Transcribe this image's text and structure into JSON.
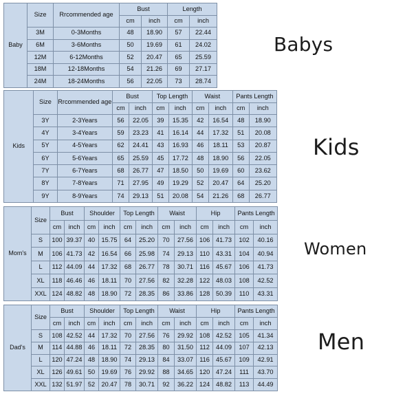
{
  "sections": [
    {
      "id": "baby",
      "group_label": "Baby",
      "side_label": "Babys",
      "header": {
        "size": "Size",
        "age": "Rrcommended age",
        "measures": [
          "Bust",
          "Length"
        ],
        "units": [
          "cm",
          "inch"
        ]
      },
      "rows": [
        {
          "size": "3M",
          "age": "0-3Months",
          "values": [
            "48",
            "18.90",
            "57",
            "22.44"
          ]
        },
        {
          "size": "6M",
          "age": "3-6Months",
          "values": [
            "50",
            "19.69",
            "61",
            "24.02"
          ]
        },
        {
          "size": "12M",
          "age": "6-12Months",
          "values": [
            "52",
            "20.47",
            "65",
            "25.59"
          ]
        },
        {
          "size": "18M",
          "age": "12-18Months",
          "values": [
            "54",
            "21.26",
            "69",
            "27.17"
          ]
        },
        {
          "size": "24M",
          "age": "18-24Months",
          "values": [
            "56",
            "22.05",
            "73",
            "28.74"
          ]
        }
      ]
    },
    {
      "id": "kids",
      "group_label": "Kids",
      "side_label": "Kids",
      "header": {
        "size": "Size",
        "age": "Rrcommended age",
        "measures": [
          "Bust",
          "Top Length",
          "Waist",
          "Pants Length"
        ],
        "units": [
          "cm",
          "inch"
        ]
      },
      "rows": [
        {
          "size": "3Y",
          "age": "2-3Years",
          "values": [
            "56",
            "22.05",
            "39",
            "15.35",
            "42",
            "16.54",
            "48",
            "18.90"
          ]
        },
        {
          "size": "4Y",
          "age": "3-4Years",
          "values": [
            "59",
            "23.23",
            "41",
            "16.14",
            "44",
            "17.32",
            "51",
            "20.08"
          ]
        },
        {
          "size": "5Y",
          "age": "4-5Years",
          "values": [
            "62",
            "24.41",
            "43",
            "16.93",
            "46",
            "18.11",
            "53",
            "20.87"
          ]
        },
        {
          "size": "6Y",
          "age": "5-6Years",
          "values": [
            "65",
            "25.59",
            "45",
            "17.72",
            "48",
            "18.90",
            "56",
            "22.05"
          ]
        },
        {
          "size": "7Y",
          "age": "6-7Years",
          "values": [
            "68",
            "26.77",
            "47",
            "18.50",
            "50",
            "19.69",
            "60",
            "23.62"
          ]
        },
        {
          "size": "8Y",
          "age": "7-8Years",
          "values": [
            "71",
            "27.95",
            "49",
            "19.29",
            "52",
            "20.47",
            "64",
            "25.20"
          ]
        },
        {
          "size": "9Y",
          "age": "8-9Years",
          "values": [
            "74",
            "29.13",
            "51",
            "20.08",
            "54",
            "21.26",
            "68",
            "26.77"
          ]
        }
      ]
    },
    {
      "id": "mom",
      "group_label": "Mom's",
      "side_label": "Women",
      "header": {
        "size": "Size",
        "measures": [
          "Bust",
          "Shoulder",
          "Top Length",
          "Waist",
          "Hip",
          "Pants Length"
        ],
        "units": [
          "cm",
          "inch"
        ]
      },
      "rows": [
        {
          "size": "S",
          "values": [
            "100",
            "39.37",
            "40",
            "15.75",
            "64",
            "25.20",
            "70",
            "27.56",
            "106",
            "41.73",
            "102",
            "40.16"
          ]
        },
        {
          "size": "M",
          "values": [
            "106",
            "41.73",
            "42",
            "16.54",
            "66",
            "25.98",
            "74",
            "29.13",
            "110",
            "43.31",
            "104",
            "40.94"
          ]
        },
        {
          "size": "L",
          "values": [
            "112",
            "44.09",
            "44",
            "17.32",
            "68",
            "26.77",
            "78",
            "30.71",
            "116",
            "45.67",
            "106",
            "41.73"
          ]
        },
        {
          "size": "XL",
          "values": [
            "118",
            "46.46",
            "46",
            "18.11",
            "70",
            "27.56",
            "82",
            "32.28",
            "122",
            "48.03",
            "108",
            "42.52"
          ]
        },
        {
          "size": "XXL",
          "values": [
            "124",
            "48.82",
            "48",
            "18.90",
            "72",
            "28.35",
            "86",
            "33.86",
            "128",
            "50.39",
            "110",
            "43.31"
          ]
        }
      ]
    },
    {
      "id": "dad",
      "group_label": "Dad's",
      "side_label": "Men",
      "header": {
        "size": "Size",
        "measures": [
          "Bust",
          "Shoulder",
          "Top Length",
          "Waist",
          "Hip",
          "Pants Length"
        ],
        "units": [
          "cm",
          "inch"
        ]
      },
      "rows": [
        {
          "size": "S",
          "values": [
            "108",
            "42.52",
            "44",
            "17.32",
            "70",
            "27.56",
            "76",
            "29.92",
            "108",
            "42.52",
            "105",
            "41.34"
          ]
        },
        {
          "size": "M",
          "values": [
            "114",
            "44.88",
            "46",
            "18.11",
            "72",
            "28.35",
            "80",
            "31.50",
            "112",
            "44.09",
            "107",
            "42.13"
          ]
        },
        {
          "size": "L",
          "values": [
            "120",
            "47.24",
            "48",
            "18.90",
            "74",
            "29.13",
            "84",
            "33.07",
            "116",
            "45.67",
            "109",
            "42.91"
          ]
        },
        {
          "size": "XL",
          "values": [
            "126",
            "49.61",
            "50",
            "19.69",
            "76",
            "29.92",
            "88",
            "34.65",
            "120",
            "47.24",
            "111",
            "43.70"
          ]
        },
        {
          "size": "XXL",
          "values": [
            "132",
            "51.97",
            "52",
            "20.47",
            "78",
            "30.71",
            "92",
            "36.22",
            "124",
            "48.82",
            "113",
            "44.49"
          ]
        }
      ]
    }
  ]
}
